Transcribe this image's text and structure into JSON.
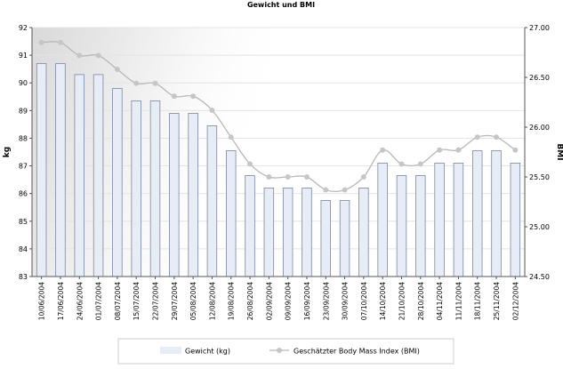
{
  "chart_data": {
    "type": "bar",
    "title": "Gewicht und BMI",
    "ylabel_left": "kg",
    "ylabel_right": "BMI",
    "ylim_left": [
      83,
      92
    ],
    "ylim_right": [
      24.5,
      27.0
    ],
    "yticks_left": [
      "83",
      "84",
      "85",
      "86",
      "87",
      "88",
      "89",
      "90",
      "91",
      "92"
    ],
    "yticks_right": [
      "24.50",
      "25.00",
      "25.50",
      "26.00",
      "26.50",
      "27.00"
    ],
    "grid": true,
    "legend_position": "bottom",
    "categories": [
      "10/06/2004",
      "17/06/2004",
      "24/06/2004",
      "01/07/2004",
      "08/07/2004",
      "15/07/2004",
      "22/07/2004",
      "29/07/2004",
      "05/08/2004",
      "12/08/2004",
      "19/08/2004",
      "26/08/2004",
      "02/09/2004",
      "09/09/2004",
      "16/09/2004",
      "23/09/2004",
      "30/09/2004",
      "07/10/2004",
      "14/10/2004",
      "21/10/2004",
      "28/10/2004",
      "04/11/2004",
      "11/11/2004",
      "18/11/2004",
      "25/11/2004",
      "02/12/2004"
    ],
    "series": [
      {
        "name": "Gewicht (kg)",
        "type": "bar",
        "axis": "left",
        "color": "#e6edf7",
        "stroke": "#7c87a3",
        "values": [
          90.7,
          90.7,
          90.3,
          90.3,
          89.8,
          89.35,
          89.35,
          88.9,
          88.9,
          88.45,
          87.55,
          86.65,
          86.2,
          86.2,
          86.2,
          85.75,
          85.75,
          86.2,
          87.1,
          86.65,
          86.65,
          87.1,
          87.1,
          87.55,
          87.55,
          87.1
        ]
      },
      {
        "name": "Geschätzter Body Mass Index (BMI)",
        "type": "line",
        "axis": "right",
        "color": "#b8b8b8",
        "values": [
          26.85,
          26.85,
          26.72,
          26.72,
          26.58,
          26.44,
          26.44,
          26.31,
          26.31,
          26.17,
          25.9,
          25.63,
          25.5,
          25.5,
          25.5,
          25.37,
          25.37,
          25.5,
          25.77,
          25.63,
          25.63,
          25.77,
          25.77,
          25.9,
          25.9,
          25.77
        ]
      }
    ]
  }
}
